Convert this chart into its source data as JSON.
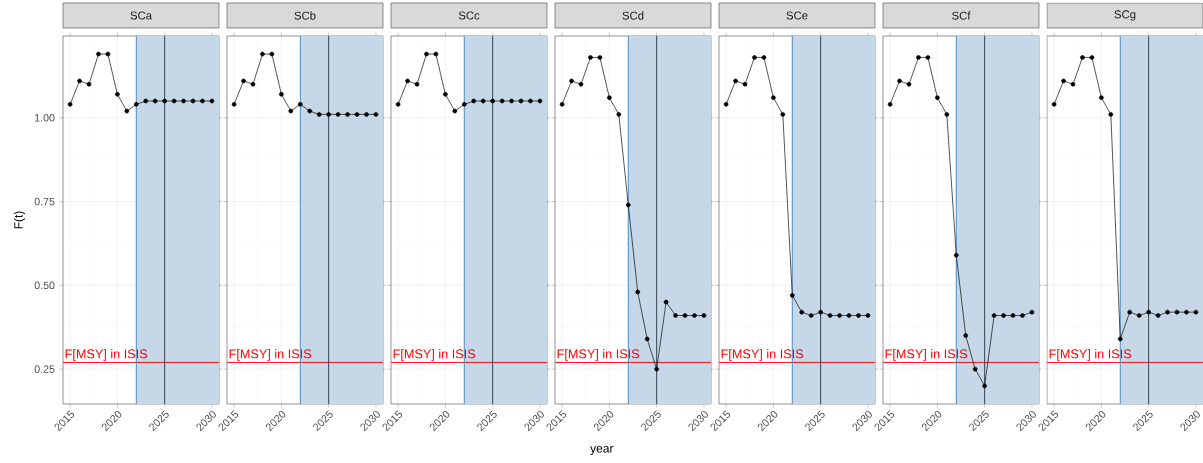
{
  "chart_data": [
    {
      "type": "line",
      "title": "SCa",
      "ylabel": "F(t)",
      "x": [
        2015,
        2016,
        2017,
        2018,
        2019,
        2020,
        2021,
        2022,
        2023,
        2024,
        2025,
        2026,
        2027,
        2028,
        2029,
        2030
      ],
      "series": [
        {
          "color": "#000000",
          "values": [
            1.04,
            1.11,
            1.1,
            1.19,
            1.19,
            1.07,
            1.02,
            1.04,
            1.05,
            1.05,
            1.05,
            1.05,
            1.05,
            1.05,
            1.05,
            1.05
          ]
        }
      ],
      "xlim": [
        2014.25,
        2030.75
      ],
      "ylim": [
        0.146,
        1.244
      ],
      "xticks": [
        2015,
        2020,
        2025,
        2030
      ],
      "yticks": [
        {
          "value": 0.25,
          "label": "0.25"
        },
        {
          "value": 0.5,
          "label": "0.50"
        },
        {
          "value": 0.75,
          "label": "0.75"
        },
        {
          "value": 1,
          "label": "1.00"
        }
      ],
      "grid": true,
      "marker": "circle",
      "line_style": "solid",
      "ref_lines": [
        {
          "axis": "y",
          "value": 0.27,
          "label": "F[MSY] in ISIS",
          "color": "#ff0000"
        },
        {
          "axis": "x",
          "value": 2025,
          "color": "#2b3a48"
        },
        {
          "axis": "x",
          "value": 2022,
          "color": "#4682b4"
        }
      ],
      "bands": [
        {
          "axis": "x",
          "from": 2022,
          "to": 2030.75,
          "color": "#c6d8e8"
        }
      ]
    },
    {
      "type": "line",
      "title": "SCb",
      "x": [
        2015,
        2016,
        2017,
        2018,
        2019,
        2020,
        2021,
        2022,
        2023,
        2024,
        2025,
        2026,
        2027,
        2028,
        2029,
        2030
      ],
      "series": [
        {
          "color": "#000000",
          "values": [
            1.04,
            1.11,
            1.1,
            1.19,
            1.19,
            1.07,
            1.02,
            1.04,
            1.02,
            1.01,
            1.01,
            1.01,
            1.01,
            1.01,
            1.01,
            1.01
          ]
        }
      ],
      "xlim": [
        2014.25,
        2030.75
      ],
      "ylim": [
        0.146,
        1.244
      ],
      "xticks": [
        2015,
        2020,
        2025,
        2030
      ],
      "grid": true,
      "marker": "circle",
      "line_style": "solid",
      "tick_labels": "x",
      "ref_lines": [
        {
          "axis": "y",
          "value": 0.27,
          "label": "F[MSY] in ISIS",
          "color": "#ff0000"
        },
        {
          "axis": "x",
          "value": 2025,
          "color": "#2b3a48"
        },
        {
          "axis": "x",
          "value": 2022,
          "color": "#4682b4"
        }
      ],
      "bands": [
        {
          "axis": "x",
          "from": 2022,
          "to": 2030.75,
          "color": "#c6d8e8"
        }
      ]
    },
    {
      "type": "line",
      "title": "SCc",
      "x": [
        2015,
        2016,
        2017,
        2018,
        2019,
        2020,
        2021,
        2022,
        2023,
        2024,
        2025,
        2026,
        2027,
        2028,
        2029,
        2030
      ],
      "series": [
        {
          "color": "#000000",
          "values": [
            1.04,
            1.11,
            1.1,
            1.19,
            1.19,
            1.07,
            1.02,
            1.04,
            1.05,
            1.05,
            1.05,
            1.05,
            1.05,
            1.05,
            1.05,
            1.05
          ]
        }
      ],
      "xlim": [
        2014.25,
        2030.75
      ],
      "ylim": [
        0.146,
        1.244
      ],
      "xticks": [
        2015,
        2020,
        2025,
        2030
      ],
      "grid": true,
      "marker": "circle",
      "line_style": "solid",
      "tick_labels": "x",
      "ref_lines": [
        {
          "axis": "y",
          "value": 0.27,
          "label": "F[MSY] in ISIS",
          "color": "#ff0000"
        },
        {
          "axis": "x",
          "value": 2025,
          "color": "#2b3a48"
        },
        {
          "axis": "x",
          "value": 2022,
          "color": "#4682b4"
        }
      ],
      "bands": [
        {
          "axis": "x",
          "from": 2022,
          "to": 2030.75,
          "color": "#c6d8e8"
        }
      ]
    },
    {
      "type": "line",
      "title": "SCd",
      "xlabel": "year",
      "x": [
        2015,
        2016,
        2017,
        2018,
        2019,
        2020,
        2021,
        2022,
        2023,
        2024,
        2025,
        2026,
        2027,
        2028,
        2029,
        2030
      ],
      "series": [
        {
          "color": "#000000",
          "values": [
            1.04,
            1.11,
            1.1,
            1.18,
            1.18,
            1.06,
            1.01,
            0.74,
            0.48,
            0.34,
            0.25,
            0.45,
            0.41,
            0.41,
            0.41,
            0.41
          ]
        }
      ],
      "xlim": [
        2014.25,
        2030.75
      ],
      "ylim": [
        0.146,
        1.244
      ],
      "xticks": [
        2015,
        2020,
        2025,
        2030
      ],
      "grid": true,
      "marker": "circle",
      "line_style": "solid",
      "tick_labels": "x",
      "ref_lines": [
        {
          "axis": "y",
          "value": 0.27,
          "label": "F[MSY] in ISIS",
          "color": "#ff0000"
        },
        {
          "axis": "x",
          "value": 2025,
          "color": "#2b3a48"
        },
        {
          "axis": "x",
          "value": 2022,
          "color": "#4682b4"
        }
      ],
      "bands": [
        {
          "axis": "x",
          "from": 2022,
          "to": 2030.75,
          "color": "#c6d8e8"
        }
      ]
    },
    {
      "type": "line",
      "title": "SCe",
      "x": [
        2015,
        2016,
        2017,
        2018,
        2019,
        2020,
        2021,
        2022,
        2023,
        2024,
        2025,
        2026,
        2027,
        2028,
        2029,
        2030
      ],
      "series": [
        {
          "color": "#000000",
          "values": [
            1.04,
            1.11,
            1.1,
            1.18,
            1.18,
            1.06,
            1.01,
            0.47,
            0.42,
            0.41,
            0.42,
            0.41,
            0.41,
            0.41,
            0.41,
            0.41
          ]
        }
      ],
      "xlim": [
        2014.25,
        2030.75
      ],
      "ylim": [
        0.146,
        1.244
      ],
      "xticks": [
        2015,
        2020,
        2025,
        2030
      ],
      "grid": true,
      "marker": "circle",
      "line_style": "solid",
      "tick_labels": "x",
      "ref_lines": [
        {
          "axis": "y",
          "value": 0.27,
          "label": "F[MSY] in ISIS",
          "color": "#ff0000"
        },
        {
          "axis": "x",
          "value": 2025,
          "color": "#2b3a48"
        },
        {
          "axis": "x",
          "value": 2022,
          "color": "#4682b4"
        }
      ],
      "bands": [
        {
          "axis": "x",
          "from": 2022,
          "to": 2030.75,
          "color": "#c6d8e8"
        }
      ]
    },
    {
      "type": "line",
      "title": "SCf",
      "x": [
        2015,
        2016,
        2017,
        2018,
        2019,
        2020,
        2021,
        2022,
        2023,
        2024,
        2025,
        2026,
        2027,
        2028,
        2029,
        2030
      ],
      "series": [
        {
          "color": "#000000",
          "values": [
            1.04,
            1.11,
            1.1,
            1.18,
            1.18,
            1.06,
            1.01,
            0.59,
            0.35,
            0.25,
            0.2,
            0.41,
            0.41,
            0.41,
            0.41,
            0.42
          ]
        }
      ],
      "xlim": [
        2014.25,
        2030.75
      ],
      "ylim": [
        0.146,
        1.244
      ],
      "xticks": [
        2015,
        2020,
        2025,
        2030
      ],
      "grid": true,
      "marker": "circle",
      "line_style": "solid",
      "tick_labels": "x",
      "ref_lines": [
        {
          "axis": "y",
          "value": 0.27,
          "label": "F[MSY] in ISIS",
          "color": "#ff0000"
        },
        {
          "axis": "x",
          "value": 2025,
          "color": "#2b3a48"
        },
        {
          "axis": "x",
          "value": 2022,
          "color": "#4682b4"
        }
      ],
      "bands": [
        {
          "axis": "x",
          "from": 2022,
          "to": 2030.75,
          "color": "#c6d8e8"
        }
      ]
    },
    {
      "type": "line",
      "title": "SCg",
      "x": [
        2015,
        2016,
        2017,
        2018,
        2019,
        2020,
        2021,
        2022,
        2023,
        2024,
        2025,
        2026,
        2027,
        2028,
        2029,
        2030
      ],
      "series": [
        {
          "color": "#000000",
          "values": [
            1.04,
            1.11,
            1.1,
            1.18,
            1.18,
            1.06,
            1.01,
            0.34,
            0.42,
            0.41,
            0.42,
            0.41,
            0.42,
            0.42,
            0.42,
            0.42
          ]
        }
      ],
      "xlim": [
        2014.25,
        2030.75
      ],
      "ylim": [
        0.146,
        1.244
      ],
      "xticks": [
        2015,
        2020,
        2025,
        2030
      ],
      "grid": true,
      "marker": "circle",
      "line_style": "solid",
      "tick_labels": "x",
      "ref_lines": [
        {
          "axis": "y",
          "value": 0.27,
          "label": "F[MSY] in ISIS",
          "color": "#ff0000"
        },
        {
          "axis": "x",
          "value": 2025,
          "color": "#2b3a48"
        },
        {
          "axis": "x",
          "value": 2022,
          "color": "#4682b4"
        }
      ],
      "bands": [
        {
          "axis": "x",
          "from": 2022,
          "to": 2030.75,
          "color": "#c6d8e8"
        }
      ]
    }
  ]
}
